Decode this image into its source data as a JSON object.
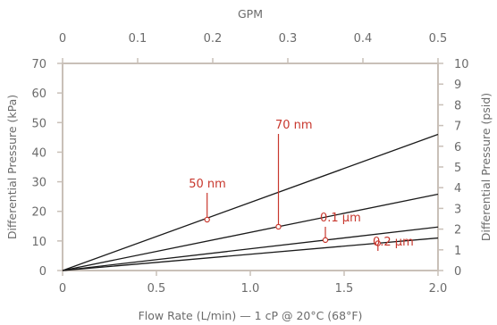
{
  "chart_data": {
    "type": "line",
    "title": "",
    "xlabel": "Flow Rate (L/min) — 1 cP @ 20°C (68°F)",
    "ylabel": "Differential Pressure (kPa)",
    "x2label": "GPM",
    "y2label": "Differential Pressure (psid)",
    "xlim": [
      0,
      2.0
    ],
    "ylim": [
      0,
      70
    ],
    "x2lim": [
      0,
      0.5
    ],
    "y2lim": [
      0,
      10
    ],
    "xticks": [
      "0",
      "0.5",
      "1.0",
      "1.5",
      "2.0"
    ],
    "yticks": [
      "0",
      "10",
      "20",
      "30",
      "40",
      "50",
      "60",
      "70"
    ],
    "x2ticks": [
      "0",
      "0.1",
      "0.2",
      "0.3",
      "0.4",
      "0.5"
    ],
    "y2ticks": [
      "0",
      "1",
      "2",
      "3",
      "4",
      "5",
      "6",
      "7",
      "8",
      "9",
      "10"
    ],
    "grid": false,
    "series": [
      {
        "name": "50 nm",
        "x": [
          0,
          2.0
        ],
        "y": [
          0,
          46
        ],
        "marker": [
          0.77,
          17.2
        ]
      },
      {
        "name": "70 nm",
        "x": [
          0,
          2.0
        ],
        "y": [
          0,
          25.8
        ],
        "marker": [
          1.15,
          14.8
        ]
      },
      {
        "name": "0.1 µm",
        "x": [
          0,
          2.0
        ],
        "y": [
          0,
          14.7
        ],
        "marker": [
          1.4,
          10.3
        ]
      },
      {
        "name": "0.2 µm",
        "x": [
          0,
          2.0
        ],
        "y": [
          0,
          11
        ],
        "marker": [
          1.68,
          9.2
        ]
      }
    ],
    "colors": {
      "axis": "#c9c0b8",
      "line": "#1a1a1a",
      "label": "#c8372d",
      "text": "#6b6b6b"
    }
  }
}
